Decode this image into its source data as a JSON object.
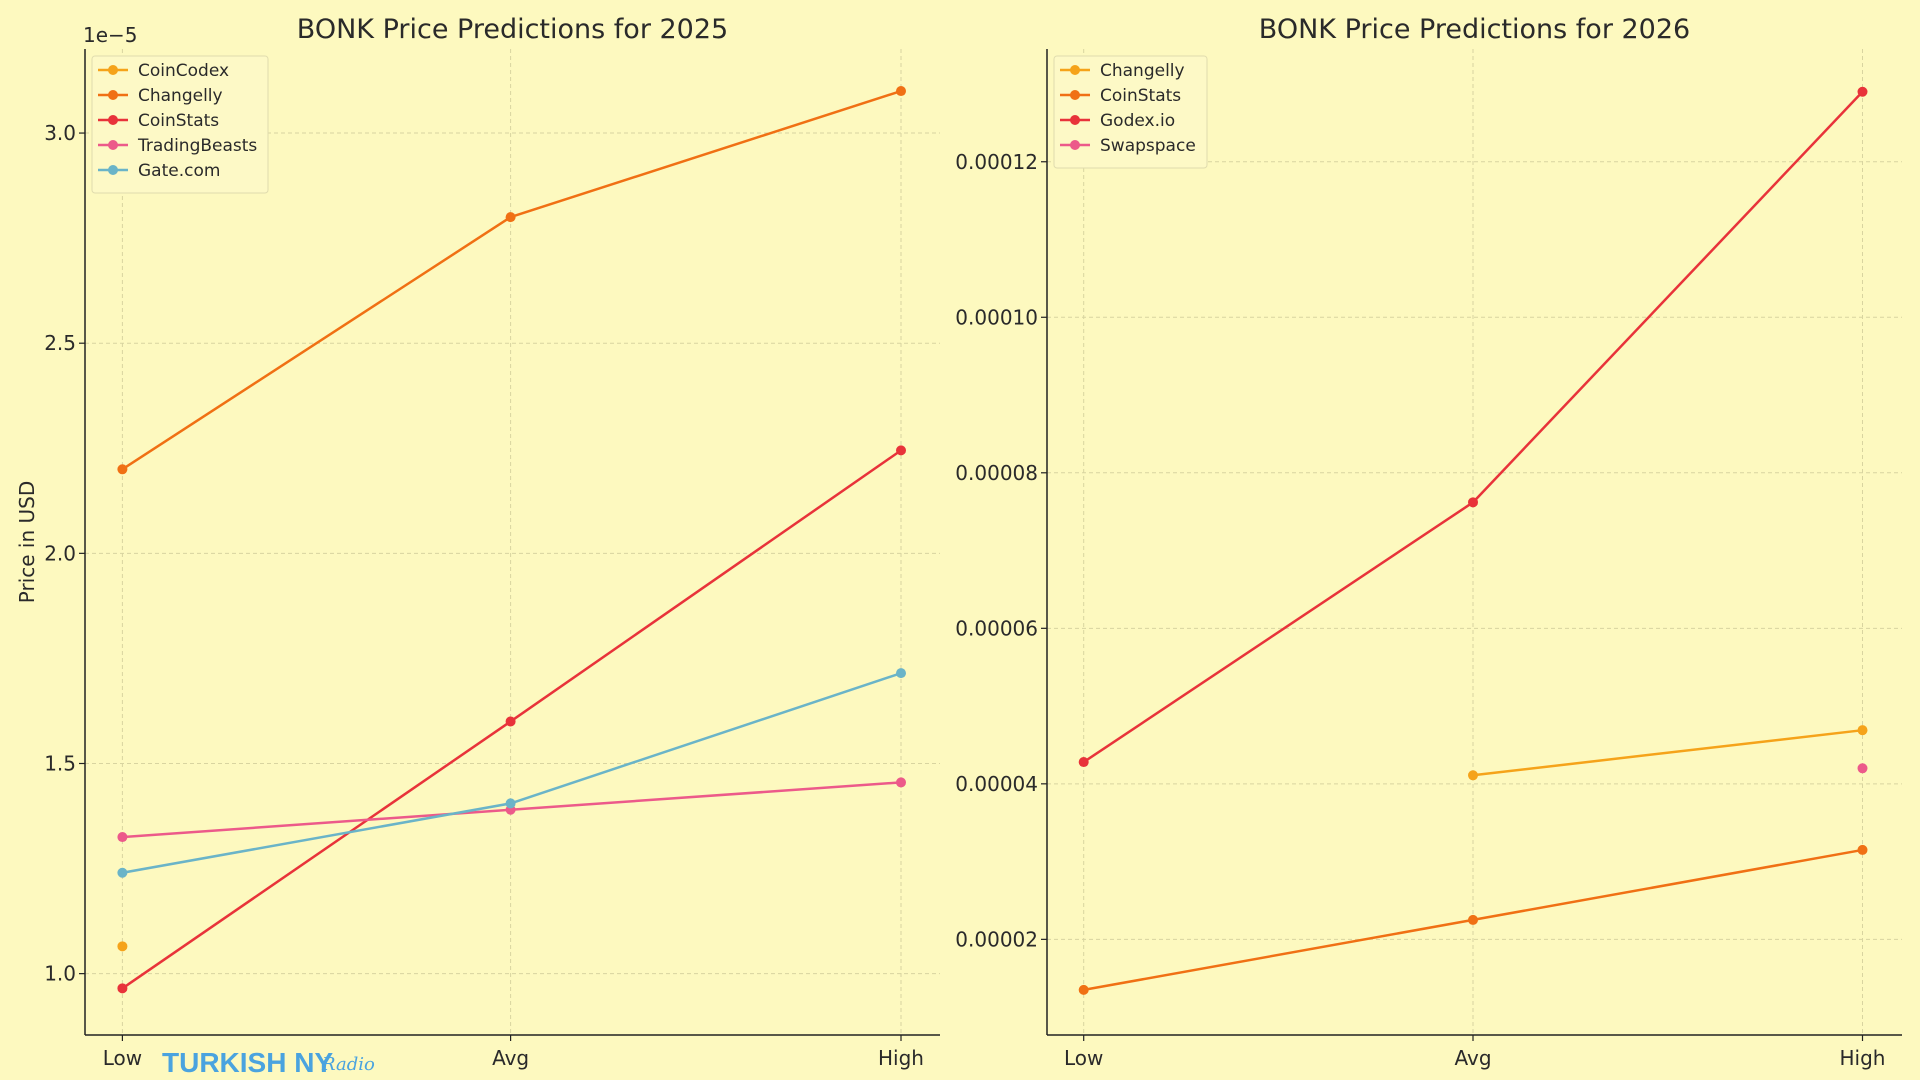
{
  "chart_data": [
    {
      "type": "line",
      "title": "BONK Price Predictions for 2025",
      "xlabel": "",
      "ylabel": "Price in USD",
      "offset_label": "1e−5",
      "scale": 1e-05,
      "categories": [
        "Low",
        "Avg",
        "High"
      ],
      "ylim": [
        0.854,
        3.2
      ],
      "yticks": [
        1.0,
        1.5,
        2.0,
        2.5,
        3.0
      ],
      "ytick_labels": [
        "1.0",
        "1.5",
        "2.0",
        "2.5",
        "3.0"
      ],
      "grid": true,
      "legend_position": "top-left",
      "series": [
        {
          "name": "CoinCodex",
          "color": "#f5a31a",
          "values": [
            1.065,
            null,
            null
          ]
        },
        {
          "name": "Changelly",
          "color": "#f07014",
          "values": [
            2.2,
            2.8,
            3.1
          ]
        },
        {
          "name": "CoinStats",
          "color": "#e8333a",
          "values": [
            0.965,
            1.6,
            2.245
          ]
        },
        {
          "name": "TradingBeasts",
          "color": "#ec5a8a",
          "values": [
            1.325,
            1.39,
            1.455
          ]
        },
        {
          "name": "Gate.com",
          "color": "#6ab4c8",
          "values": [
            1.24,
            1.405,
            1.715
          ]
        }
      ]
    },
    {
      "type": "line",
      "title": "BONK Price Predictions for 2026",
      "xlabel": "",
      "ylabel": "",
      "categories": [
        "Low",
        "Avg",
        "High"
      ],
      "ylim": [
        7.7e-06,
        0.0001345
      ],
      "yticks": [
        2e-05,
        4e-05,
        6e-05,
        8e-05,
        0.0001,
        0.00012
      ],
      "ytick_labels": [
        "0.00002",
        "0.00004",
        "0.00006",
        "0.00008",
        "0.00010",
        "0.00012"
      ],
      "grid": true,
      "legend_position": "top-left",
      "series": [
        {
          "name": "Changelly",
          "color": "#f5a31a",
          "values": [
            null,
            4.11e-05,
            4.69e-05
          ]
        },
        {
          "name": "CoinStats",
          "color": "#f07014",
          "values": [
            1.35e-05,
            2.25e-05,
            3.15e-05
          ]
        },
        {
          "name": "Godex.io",
          "color": "#e8333a",
          "values": [
            4.28e-05,
            7.62e-05,
            0.000129
          ]
        },
        {
          "name": "Swapspace",
          "color": "#ec5a8a",
          "values": [
            null,
            null,
            4.2e-05
          ]
        }
      ]
    }
  ],
  "watermark": {
    "main": "TURKISH NY",
    "script": "Radio"
  }
}
